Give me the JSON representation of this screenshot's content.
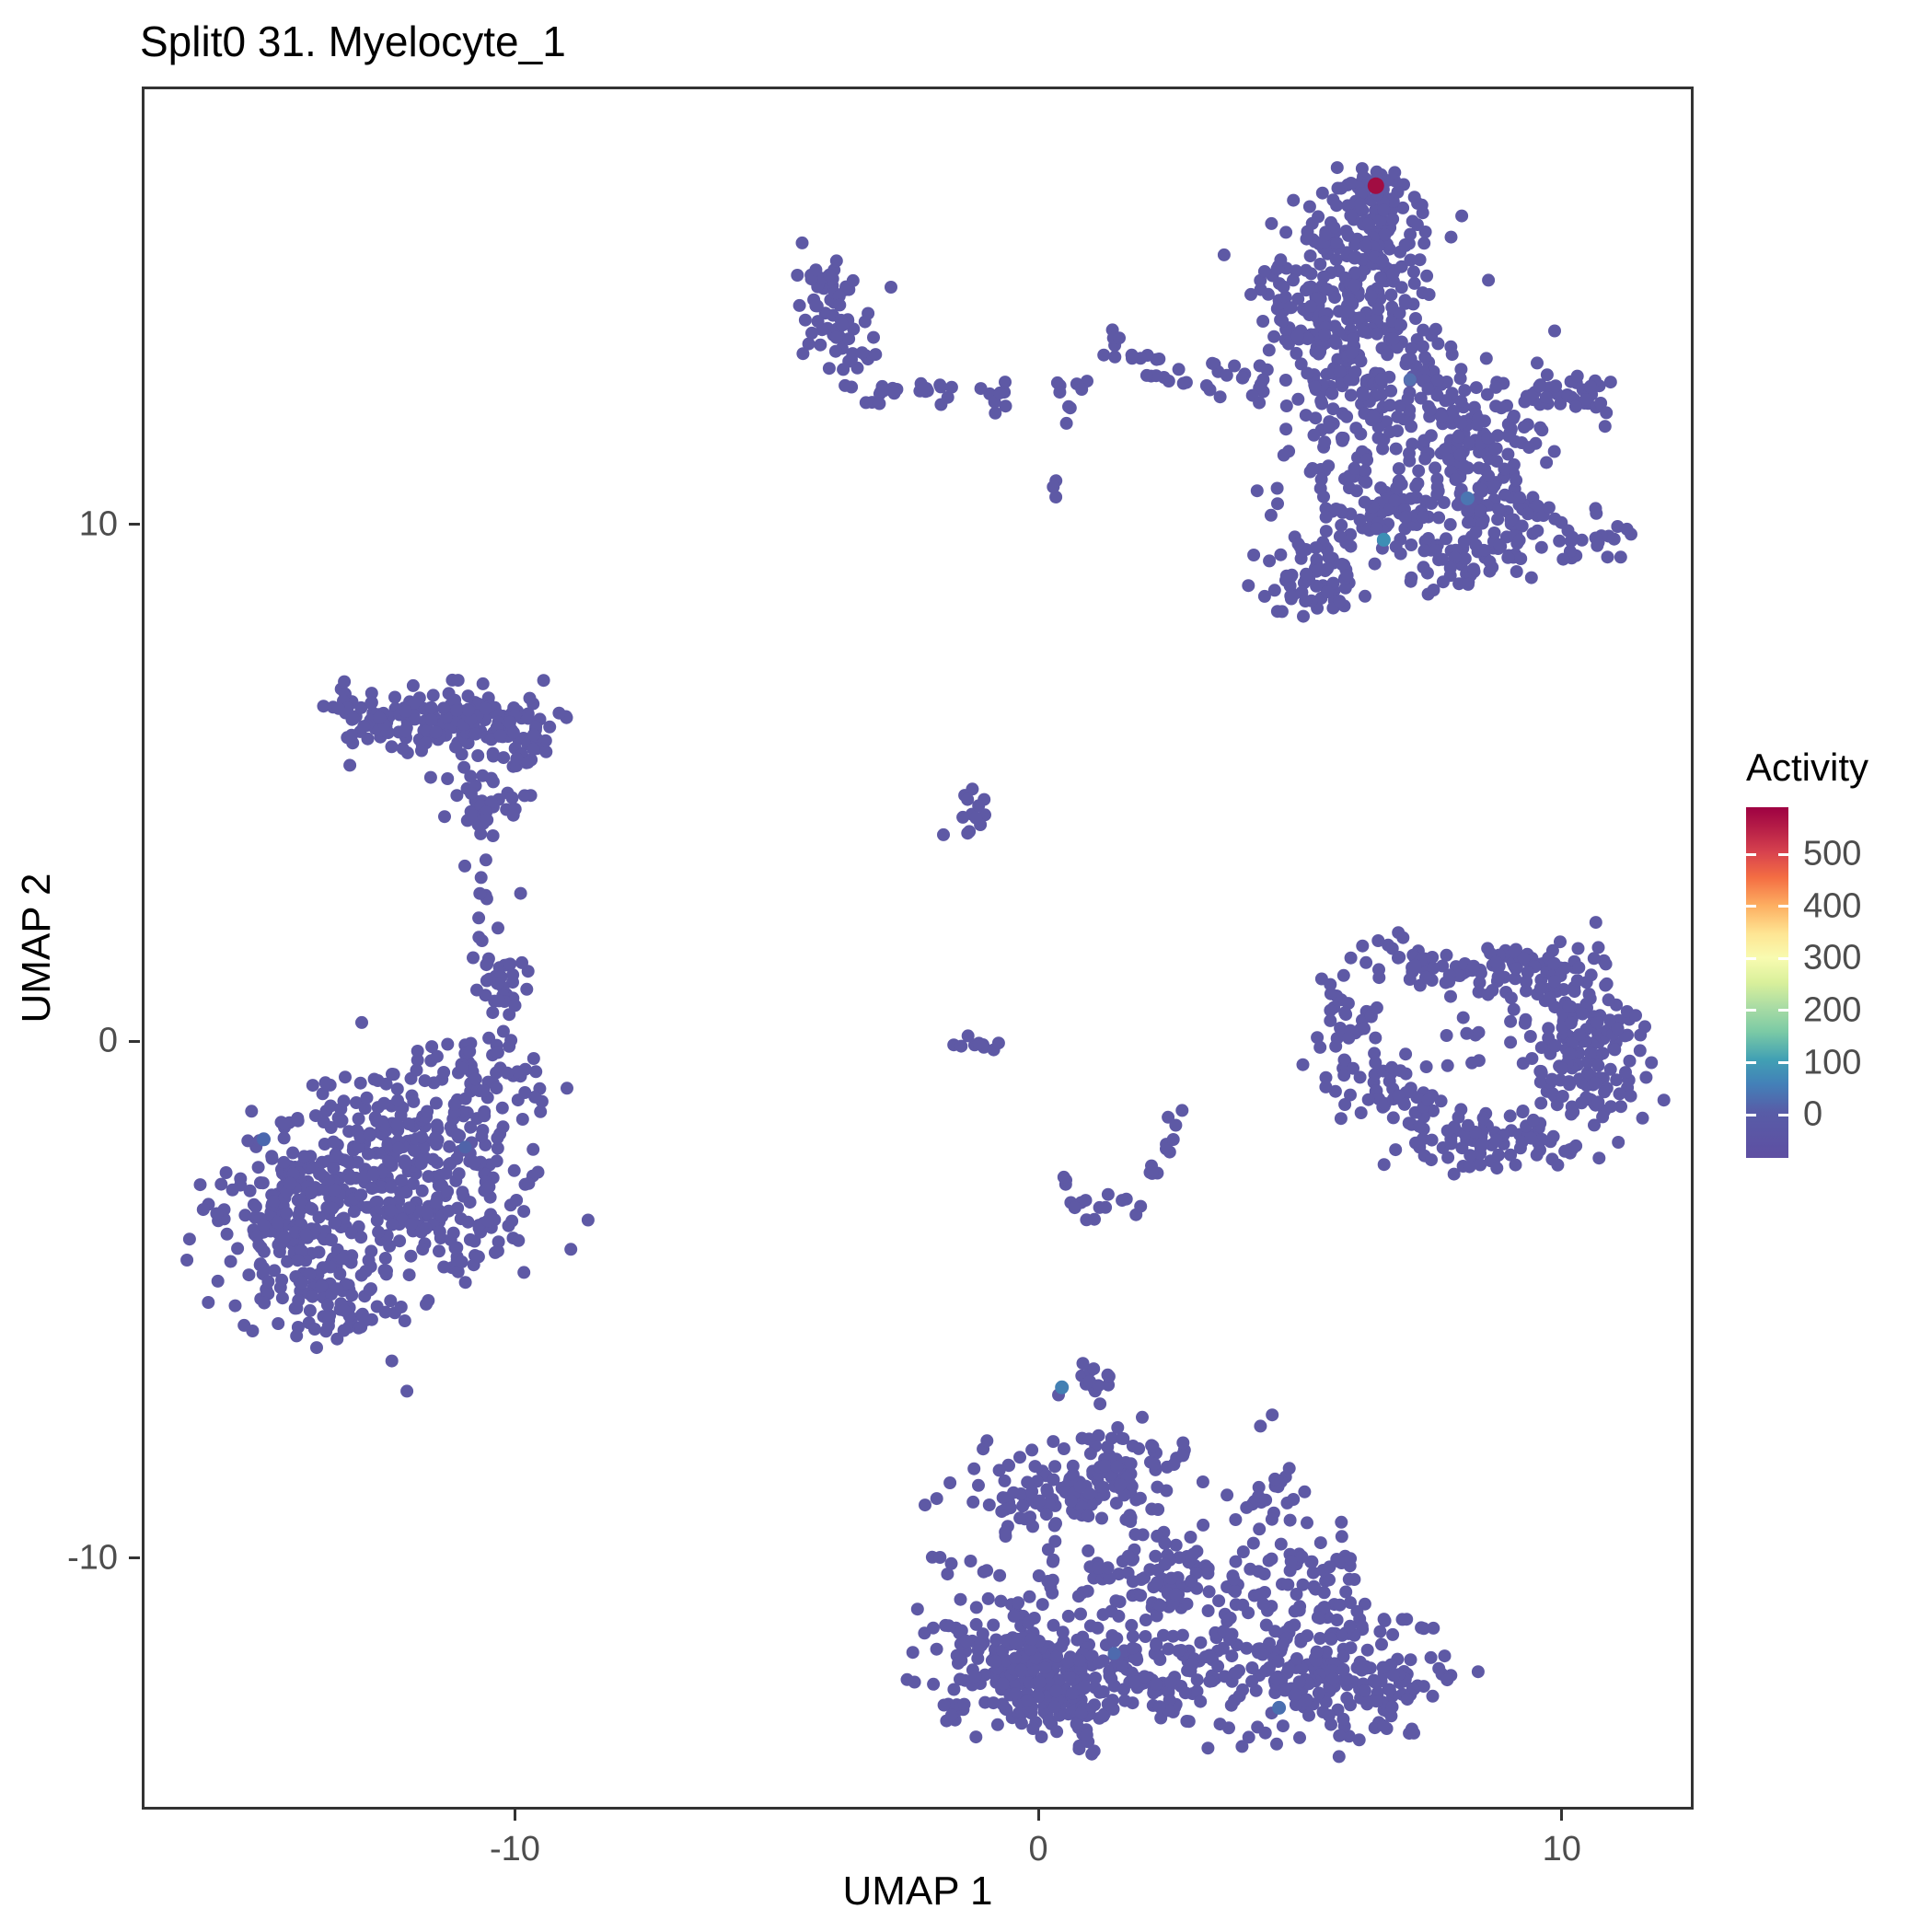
{
  "chart_data": {
    "type": "scatter",
    "title": "Split0 31. Myelocyte_1",
    "xlabel": "UMAP 1",
    "ylabel": "UMAP 2",
    "x_ticks": [
      -10,
      0,
      10
    ],
    "y_ticks": [
      10,
      0,
      -10
    ],
    "x_domain": [
      -17.13,
      12.52
    ],
    "y_domain": [
      -14.87,
      18.47
    ],
    "grid": false,
    "point_color": "#5E59A5",
    "legend": {
      "title": "Activity",
      "ticks": [
        500,
        400,
        300,
        200,
        100,
        0
      ],
      "position": "right",
      "gradient": [
        {
          "offset": 0.0,
          "color": "#5E4FA2"
        },
        {
          "offset": 0.13,
          "color": "#585CA7"
        },
        {
          "offset": 0.21,
          "color": "#4380B8"
        },
        {
          "offset": 0.28,
          "color": "#41A0B4"
        },
        {
          "offset": 0.36,
          "color": "#7BCAA5"
        },
        {
          "offset": 0.43,
          "color": "#AADCA4"
        },
        {
          "offset": 0.5,
          "color": "#D9F09B"
        },
        {
          "offset": 0.57,
          "color": "#F8FBB0"
        },
        {
          "offset": 0.64,
          "color": "#FEE593"
        },
        {
          "offset": 0.72,
          "color": "#FDAE61"
        },
        {
          "offset": 0.8,
          "color": "#F46D43"
        },
        {
          "offset": 0.87,
          "color": "#D8434E"
        },
        {
          "offset": 0.94,
          "color": "#B61E47"
        },
        {
          "offset": 1.0,
          "color": "#9E0142"
        }
      ]
    },
    "clusters": [
      {
        "x": 6.5,
        "y": 16.4,
        "sx": 0.32,
        "sy": 0.3,
        "n": 40
      },
      {
        "x": 6.2,
        "y": 15.3,
        "sx": 0.75,
        "sy": 0.65,
        "n": 150
      },
      {
        "x": 5.55,
        "y": 14.05,
        "sx": 0.7,
        "sy": 0.6,
        "n": 130
      },
      {
        "x": 6.6,
        "y": 12.45,
        "sx": 1.0,
        "sy": 0.7,
        "n": 170
      },
      {
        "x": 8.3,
        "y": 11.7,
        "sx": 0.7,
        "sy": 0.55,
        "n": 90
      },
      {
        "x": 7.0,
        "y": 10.25,
        "sx": 1.0,
        "sy": 0.6,
        "n": 150
      },
      {
        "x": 8.9,
        "y": 10.0,
        "sx": 0.6,
        "sy": 0.45,
        "n": 60
      },
      {
        "x": 5.2,
        "y": 8.95,
        "sx": 0.45,
        "sy": 0.4,
        "n": 60
      },
      {
        "x": 8.1,
        "y": 9.35,
        "sx": 0.5,
        "sy": 0.3,
        "n": 30
      },
      {
        "x": 10.1,
        "y": 12.4,
        "sx": 0.55,
        "sy": 0.3,
        "n": 40
      },
      {
        "x": 10.7,
        "y": 9.7,
        "sx": 0.5,
        "sy": 0.25,
        "n": 20
      },
      {
        "x": 4.2,
        "y": 12.6,
        "sx": 0.28,
        "sy": 0.25,
        "n": 8
      },
      {
        "x": 3.5,
        "y": 12.85,
        "sx": 0.3,
        "sy": 0.2,
        "n": 10
      },
      {
        "x": 4.5,
        "y": 10.7,
        "sx": 0.15,
        "sy": 0.15,
        "n": 2
      },
      {
        "x": -3.9,
        "y": 14.1,
        "sx": 0.38,
        "sy": 0.55,
        "n": 62
      },
      {
        "x": -3.55,
        "y": 13.2,
        "sx": 0.2,
        "sy": 0.25,
        "n": 8
      },
      {
        "x": -3.0,
        "y": 12.5,
        "sx": 0.28,
        "sy": 0.15,
        "n": 9
      },
      {
        "x": -2.35,
        "y": 12.45,
        "sx": 0.25,
        "sy": 0.15,
        "n": 7
      },
      {
        "x": -1.75,
        "y": 12.55,
        "sx": 0.2,
        "sy": 0.12,
        "n": 5
      },
      {
        "x": -0.75,
        "y": 12.4,
        "sx": 0.28,
        "sy": 0.15,
        "n": 8
      },
      {
        "x": 0.55,
        "y": 12.55,
        "sx": 0.3,
        "sy": 0.18,
        "n": 9
      },
      {
        "x": 1.35,
        "y": 13.6,
        "sx": 0.22,
        "sy": 0.18,
        "n": 6
      },
      {
        "x": 1.95,
        "y": 13.35,
        "sx": 0.22,
        "sy": 0.2,
        "n": 6
      },
      {
        "x": 2.25,
        "y": 12.9,
        "sx": 0.25,
        "sy": 0.18,
        "n": 7
      },
      {
        "x": 0.3,
        "y": 10.66,
        "sx": 0.1,
        "sy": 0.1,
        "n": 3
      },
      {
        "x": -11.1,
        "y": 6.2,
        "sx": 1.0,
        "sy": 0.33,
        "n": 150
      },
      {
        "x": -12.9,
        "y": 6.35,
        "sx": 0.4,
        "sy": 0.27,
        "n": 30
      },
      {
        "x": -9.9,
        "y": 5.9,
        "sx": 0.4,
        "sy": 0.3,
        "n": 35
      },
      {
        "x": -10.8,
        "y": 4.7,
        "sx": 0.32,
        "sy": 0.35,
        "n": 25
      },
      {
        "x": -10.0,
        "y": 4.5,
        "sx": 0.25,
        "sy": 0.2,
        "n": 12
      },
      {
        "x": -10.7,
        "y": 3.4,
        "sx": 0.12,
        "sy": 0.12,
        "n": 3
      },
      {
        "x": -10.5,
        "y": 2.8,
        "sx": 0.1,
        "sy": 0.1,
        "n": 2
      },
      {
        "x": -10.3,
        "y": 1.0,
        "sx": 0.3,
        "sy": 0.7,
        "n": 40
      },
      {
        "x": -10.6,
        "y": -0.65,
        "sx": 0.55,
        "sy": 0.45,
        "n": 55
      },
      {
        "x": -12.8,
        "y": -2.8,
        "sx": 1.3,
        "sy": 1.0,
        "n": 260
      },
      {
        "x": -14.3,
        "y": -3.6,
        "sx": 0.85,
        "sy": 0.75,
        "n": 140
      },
      {
        "x": -11.2,
        "y": -2.9,
        "sx": 0.7,
        "sy": 0.8,
        "n": 100
      },
      {
        "x": -13.5,
        "y": -4.9,
        "sx": 0.8,
        "sy": 0.45,
        "n": 70
      },
      {
        "x": -12.2,
        "y": -1.3,
        "sx": 0.9,
        "sy": 0.4,
        "n": 50
      },
      {
        "x": -1.25,
        "y": 4.5,
        "sx": 0.2,
        "sy": 0.28,
        "n": 13
      },
      {
        "x": -1.15,
        "y": -0.05,
        "sx": 0.3,
        "sy": 0.1,
        "n": 9
      },
      {
        "x": 0.35,
        "y": -2.75,
        "sx": 0.12,
        "sy": 0.12,
        "n": 3
      },
      {
        "x": 0.75,
        "y": -3.15,
        "sx": 0.15,
        "sy": 0.12,
        "n": 4
      },
      {
        "x": 1.25,
        "y": -3.3,
        "sx": 0.17,
        "sy": 0.12,
        "n": 5
      },
      {
        "x": 1.8,
        "y": -3.1,
        "sx": 0.15,
        "sy": 0.12,
        "n": 4
      },
      {
        "x": 2.2,
        "y": -2.6,
        "sx": 0.12,
        "sy": 0.15,
        "n": 4
      },
      {
        "x": 2.5,
        "y": -2.0,
        "sx": 0.12,
        "sy": 0.18,
        "n": 4
      },
      {
        "x": 2.6,
        "y": -1.5,
        "sx": 0.1,
        "sy": 0.12,
        "n": 3
      },
      {
        "x": 6.0,
        "y": 0.0,
        "sx": 0.35,
        "sy": 0.8,
        "n": 50
      },
      {
        "x": 8.2,
        "y": 1.5,
        "sx": 1.1,
        "sy": 0.33,
        "n": 80
      },
      {
        "x": 9.9,
        "y": 1.3,
        "sx": 0.5,
        "sy": 0.3,
        "n": 40
      },
      {
        "x": 10.35,
        "y": -0.2,
        "sx": 0.55,
        "sy": 0.7,
        "n": 150
      },
      {
        "x": 8.8,
        "y": -1.85,
        "sx": 0.95,
        "sy": 0.35,
        "n": 90
      },
      {
        "x": 7.0,
        "y": -1.2,
        "sx": 0.4,
        "sy": 0.4,
        "n": 35
      },
      {
        "x": 8.6,
        "y": 0.3,
        "sx": 0.5,
        "sy": 0.4,
        "n": 10
      },
      {
        "x": 1.0,
        "y": -6.7,
        "sx": 0.3,
        "sy": 0.25,
        "n": 14
      },
      {
        "x": 0.0,
        "y": -8.8,
        "sx": 0.6,
        "sy": 0.5,
        "n": 70
      },
      {
        "x": 1.5,
        "y": -8.4,
        "sx": 0.6,
        "sy": 0.5,
        "n": 80
      },
      {
        "x": -1.8,
        "y": -9.6,
        "sx": 0.2,
        "sy": 0.4,
        "n": 6
      },
      {
        "x": 2.5,
        "y": -10.5,
        "sx": 1.0,
        "sy": 0.65,
        "n": 130
      },
      {
        "x": 4.4,
        "y": -8.8,
        "sx": 0.4,
        "sy": 0.35,
        "n": 22
      },
      {
        "x": 2.75,
        "y": -7.95,
        "sx": 0.15,
        "sy": 0.15,
        "n": 4
      },
      {
        "x": 4.5,
        "y": -7.4,
        "sx": 0.12,
        "sy": 0.12,
        "n": 2
      },
      {
        "x": 5.3,
        "y": -10.2,
        "sx": 0.4,
        "sy": 0.4,
        "n": 35
      },
      {
        "x": -0.4,
        "y": -12.0,
        "sx": 0.85,
        "sy": 0.7,
        "n": 210
      },
      {
        "x": 0.6,
        "y": -12.6,
        "sx": 0.5,
        "sy": 0.5,
        "n": 80
      },
      {
        "x": 2.4,
        "y": -12.3,
        "sx": 0.7,
        "sy": 0.5,
        "n": 80
      },
      {
        "x": 5.3,
        "y": -12.0,
        "sx": 1.0,
        "sy": 0.75,
        "n": 210
      },
      {
        "x": 6.8,
        "y": -12.6,
        "sx": 0.45,
        "sy": 0.4,
        "n": 40
      }
    ],
    "highlight_points": [
      {
        "x": 6.45,
        "y": 16.55,
        "color": "#A10D42",
        "r": 9
      },
      {
        "x": 6.6,
        "y": 9.7,
        "color": "#3D8FB5",
        "r": 7.5
      },
      {
        "x": 8.2,
        "y": 10.5,
        "color": "#4B76B2",
        "r": 7.5
      },
      {
        "x": 7.1,
        "y": 12.8,
        "color": "#5570B0",
        "r": 7
      },
      {
        "x": -14.8,
        "y": -1.9,
        "color": "#4A67AE",
        "r": 7.5
      },
      {
        "x": -10.95,
        "y": -2.05,
        "color": "#5063A9",
        "r": 7
      },
      {
        "x": 0.45,
        "y": -6.7,
        "color": "#4380B3",
        "r": 7.5
      },
      {
        "x": 4.6,
        "y": -12.9,
        "color": "#4A6FB0",
        "r": 7.5
      },
      {
        "x": 1.45,
        "y": -11.85,
        "color": "#4E6AAE",
        "r": 7
      }
    ]
  }
}
